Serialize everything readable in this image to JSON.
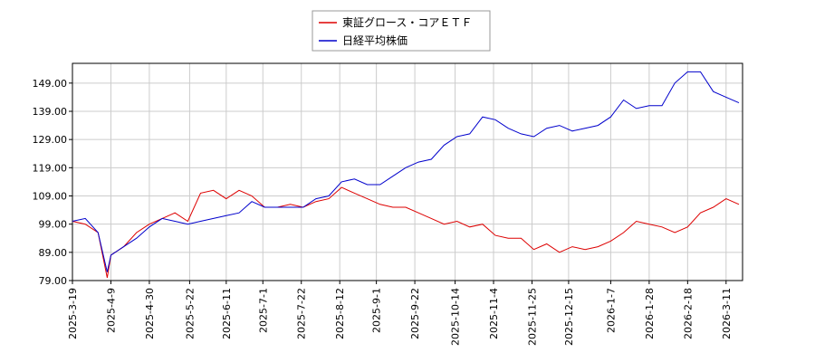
{
  "chart_data": {
    "type": "line",
    "x": [
      "2025-3-19",
      "2025-3-26",
      "2025-4-2",
      "2025-4-7",
      "2025-4-9",
      "2025-4-16",
      "2025-4-23",
      "2025-4-30",
      "2025-5-7",
      "2025-5-14",
      "2025-5-21",
      "2025-5-28",
      "2025-6-4",
      "2025-6-11",
      "2025-6-18",
      "2025-6-25",
      "2025-7-2",
      "2025-7-9",
      "2025-7-16",
      "2025-7-23",
      "2025-7-30",
      "2025-8-6",
      "2025-8-13",
      "2025-8-20",
      "2025-8-27",
      "2025-9-3",
      "2025-9-10",
      "2025-9-17",
      "2025-9-24",
      "2025-10-1",
      "2025-10-8",
      "2025-10-15",
      "2025-10-22",
      "2025-10-29",
      "2025-11-5",
      "2025-11-12",
      "2025-11-19",
      "2025-11-26",
      "2025-12-3",
      "2025-12-10",
      "2025-12-17",
      "2025-12-24",
      "2025-12-31",
      "2026-1-7",
      "2026-1-14",
      "2026-1-21",
      "2026-1-28",
      "2026-2-4",
      "2026-2-11",
      "2026-2-18",
      "2026-2-25",
      "2026-3-4",
      "2026-3-11",
      "2026-3-18"
    ],
    "series": [
      {
        "name": "東証グロース・コアＥＴＦ",
        "color": "#dd0000",
        "values": [
          100,
          99,
          96,
          80,
          88,
          91,
          96,
          99,
          101,
          103,
          100,
          110,
          111,
          108,
          111,
          109,
          105,
          105,
          106,
          105,
          107,
          108,
          112,
          110,
          108,
          106,
          105,
          105,
          103,
          101,
          99,
          100,
          98,
          99,
          95,
          94,
          94,
          90,
          92,
          89,
          91,
          90,
          91,
          93,
          96,
          100,
          99,
          98,
          96,
          98,
          103,
          105,
          108,
          106
        ]
      },
      {
        "name": "日経平均株価",
        "color": "#0000cc",
        "values": [
          100,
          101,
          96,
          82,
          88,
          91,
          94,
          98,
          101,
          100,
          99,
          100,
          101,
          102,
          103,
          107,
          105,
          105,
          105,
          105,
          108,
          109,
          114,
          115,
          113,
          113,
          116,
          119,
          121,
          122,
          127,
          130,
          131,
          137,
          136,
          133,
          131,
          130,
          133,
          134,
          132,
          133,
          134,
          137,
          143,
          140,
          141,
          141,
          149,
          153,
          153,
          146,
          144,
          142
        ]
      }
    ],
    "xlim": [
      "2025-3-19",
      "2026-3-20"
    ],
    "xticks": [
      "2025-3-19",
      "2025-4-9",
      "2025-4-30",
      "2025-5-22",
      "2025-6-11",
      "2025-7-1",
      "2025-7-22",
      "2025-8-12",
      "2025-9-1",
      "2025-9-22",
      "2025-10-14",
      "2025-11-4",
      "2025-11-25",
      "2025-12-15",
      "2026-1-7",
      "2026-1-28",
      "2026-2-18",
      "2026-3-11"
    ],
    "ylim": [
      79,
      156
    ],
    "yticks": [
      {
        "value": 79,
        "label": "79.00"
      },
      {
        "value": 89,
        "label": "89.00"
      },
      {
        "value": 99,
        "label": "99.00"
      },
      {
        "value": 109,
        "label": "109.00"
      },
      {
        "value": 119,
        "label": "119.00"
      },
      {
        "value": 129,
        "label": "129.00"
      },
      {
        "value": 139,
        "label": "139.00"
      },
      {
        "value": 149,
        "label": "149.00"
      }
    ],
    "grid": true,
    "legend": "top"
  }
}
